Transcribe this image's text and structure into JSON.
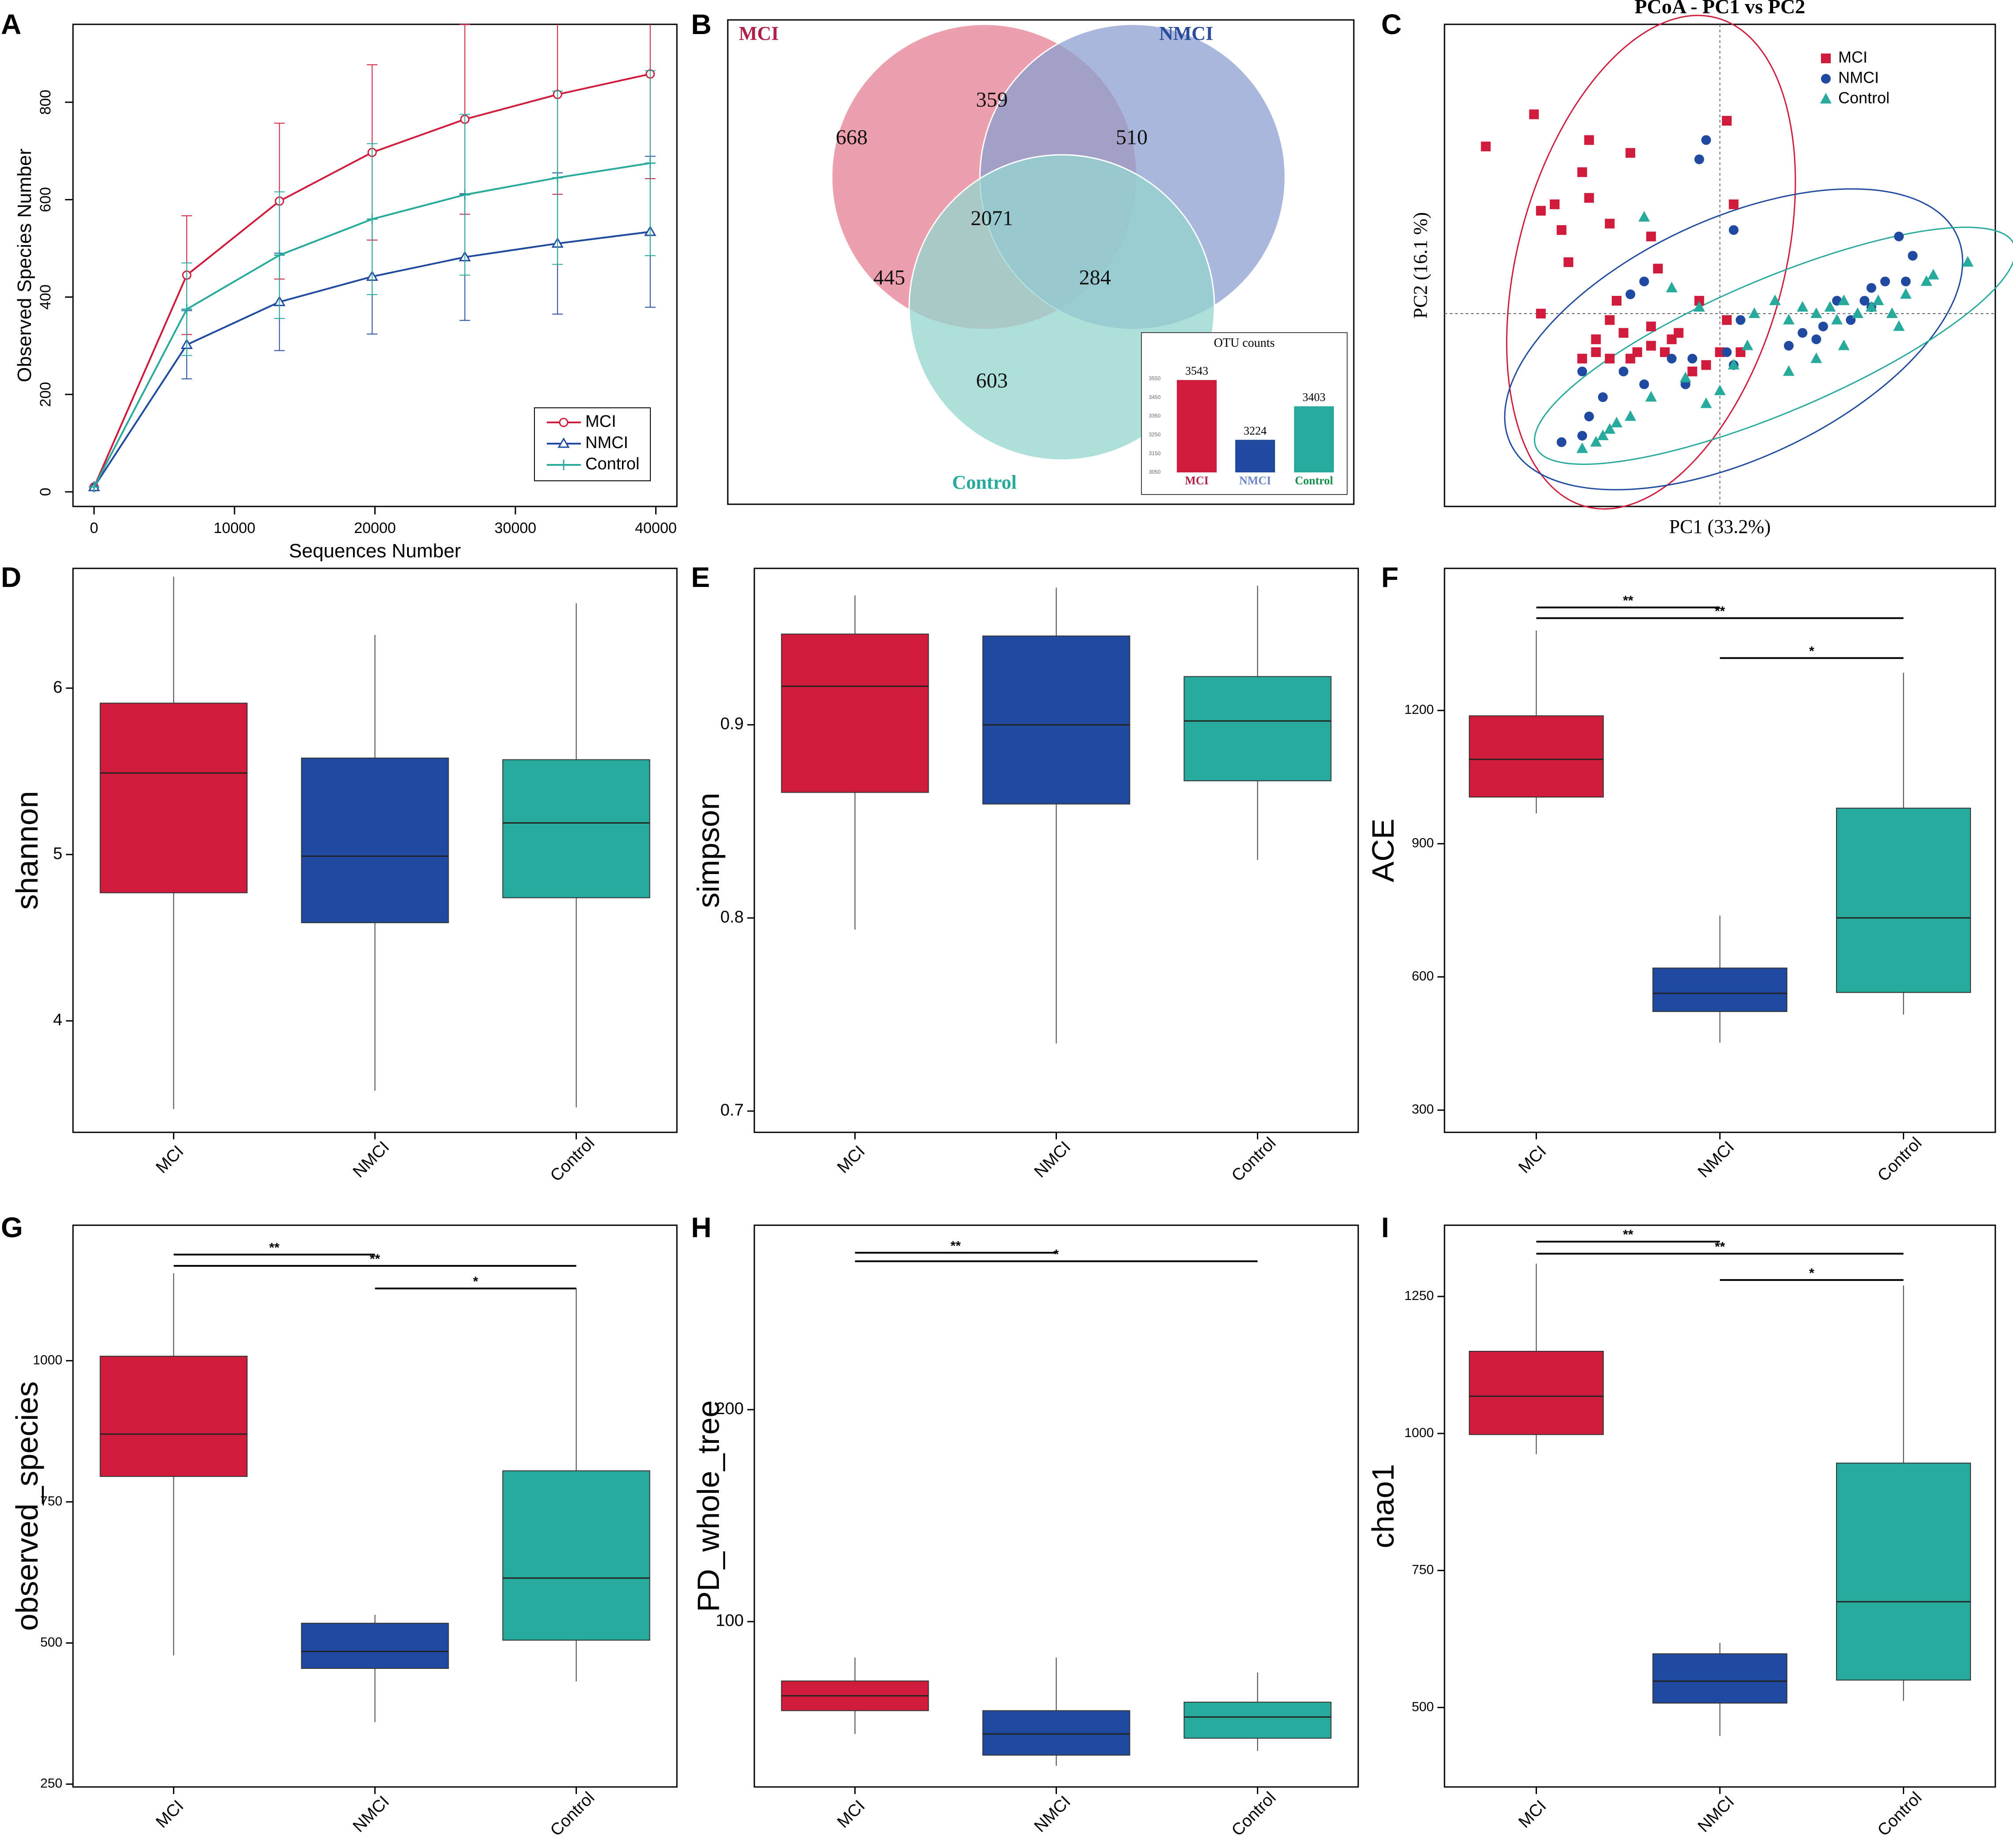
{
  "colors": {
    "mci": "#d01c3c",
    "nmci": "#1f4aa0",
    "control": "#27aa9c",
    "mci_venn": "#e57f90",
    "nmci_venn": "#8c9fd0",
    "control_venn": "#93d6cf"
  },
  "chart_data": [
    {
      "id": "A",
      "panel_label": "A",
      "type": "line",
      "title": "",
      "xlabel": "Sequences Number",
      "ylabel": "Observed Species Number",
      "xlim": [
        -1500,
        41500
      ],
      "ylim": [
        -30,
        960
      ],
      "x_ticks": [
        0,
        10000,
        20000,
        30000,
        40000
      ],
      "x_tick_labels": [
        "0",
        "10000",
        "20000",
        "30000",
        "40000"
      ],
      "y_ticks": [
        0,
        200,
        400,
        600,
        800
      ],
      "y_tick_labels": [
        "0",
        "200",
        "400",
        "600",
        "800"
      ],
      "x": [
        0,
        6600,
        13200,
        19800,
        26400,
        33000,
        39600
      ],
      "series": [
        {
          "name": "MCI",
          "color": "#d01c3c",
          "marker": "circle",
          "values": [
            10,
            445,
            597,
            697,
            765,
            816,
            858
          ],
          "err": [
            0,
            122,
            160,
            180,
            195,
            205,
            215
          ]
        },
        {
          "name": "NMCI",
          "color": "#1f4aa0",
          "marker": "triangle",
          "values": [
            10,
            302,
            390,
            442,
            482,
            510,
            534
          ],
          "err": [
            0,
            70,
            100,
            118,
            130,
            145,
            155
          ]
        },
        {
          "name": "Control",
          "color": "#27aa9c",
          "marker": "plus",
          "values": [
            10,
            375,
            486,
            560,
            610,
            645,
            675
          ],
          "err": [
            0,
            95,
            130,
            155,
            165,
            178,
            190
          ]
        }
      ],
      "legend": [
        "MCI",
        "NMCI",
        "Control"
      ],
      "legend_position": "bottom-right"
    },
    {
      "id": "B",
      "panel_label": "B",
      "type": "venn",
      "sets": [
        "MCI",
        "NMCI",
        "Control"
      ],
      "regions": {
        "mci_only": "668",
        "nmci_only": "510",
        "control_only": "603",
        "mci_nmci": "359",
        "mci_control": "445",
        "nmci_control": "284",
        "all": "2071"
      },
      "inset": {
        "type": "bar",
        "title": "OTU counts",
        "categories": [
          "MCI",
          "NMCI",
          "Control"
        ],
        "values": [
          3543,
          3224,
          3403
        ],
        "value_labels": [
          "3543",
          "3224",
          "3403"
        ],
        "ylim": [
          3050,
          3560
        ],
        "y_ticks": [
          3050,
          3150,
          3250,
          3350,
          3450,
          3550
        ],
        "y_tick_labels": [
          "3050",
          "3150",
          "3250",
          "3350",
          "3450",
          "3550"
        ]
      }
    },
    {
      "id": "C",
      "panel_label": "C",
      "type": "scatter",
      "title": "PCoA - PC1 vs PC2",
      "xlabel": "PC1 (33.2%)",
      "ylabel": "PC2 (16.1 %)",
      "xlim": [
        -0.4,
        0.4
      ],
      "ylim": [
        -0.3,
        0.45
      ],
      "legend": [
        "MCI",
        "NMCI",
        "Control"
      ],
      "legend_position": "top-right",
      "series": [
        {
          "name": "MCI",
          "marker": "square",
          "color": "#d01c3c",
          "points": [
            [
              -0.34,
              0.26
            ],
            [
              -0.27,
              0.31
            ],
            [
              -0.19,
              0.27
            ],
            [
              -0.2,
              0.22
            ],
            [
              -0.13,
              0.25
            ],
            [
              -0.26,
              0.16
            ],
            [
              -0.24,
              0.17
            ],
            [
              -0.19,
              0.18
            ],
            [
              -0.16,
              0.14
            ],
            [
              -0.23,
              0.13
            ],
            [
              -0.1,
              0.12
            ],
            [
              -0.22,
              0.08
            ],
            [
              -0.09,
              0.07
            ],
            [
              0.01,
              0.3
            ],
            [
              0.02,
              0.17
            ],
            [
              -0.15,
              0.02
            ],
            [
              -0.16,
              -0.01
            ],
            [
              -0.18,
              -0.04
            ],
            [
              -0.2,
              -0.07
            ],
            [
              -0.26,
              0.0
            ],
            [
              -0.18,
              -0.06
            ],
            [
              -0.16,
              -0.07
            ],
            [
              -0.13,
              -0.07
            ],
            [
              -0.12,
              -0.06
            ],
            [
              -0.1,
              -0.05
            ],
            [
              -0.08,
              -0.06
            ],
            [
              -0.07,
              -0.04
            ],
            [
              -0.04,
              -0.09
            ],
            [
              -0.02,
              -0.08
            ],
            [
              -0.03,
              0.02
            ],
            [
              0.0,
              -0.06
            ],
            [
              0.01,
              -0.01
            ],
            [
              0.03,
              -0.06
            ],
            [
              -0.1,
              -0.02
            ],
            [
              -0.06,
              -0.03
            ],
            [
              -0.14,
              -0.03
            ]
          ]
        },
        {
          "name": "NMCI",
          "marker": "circle",
          "color": "#1f4aa0",
          "points": [
            [
              -0.02,
              0.27
            ],
            [
              -0.03,
              0.24
            ],
            [
              0.02,
              0.13
            ],
            [
              0.26,
              0.12
            ],
            [
              0.28,
              0.09
            ],
            [
              0.27,
              0.05
            ],
            [
              0.24,
              0.05
            ],
            [
              0.22,
              0.04
            ],
            [
              0.21,
              0.02
            ],
            [
              0.22,
              0.01
            ],
            [
              0.17,
              0.02
            ],
            [
              0.19,
              -0.01
            ],
            [
              0.14,
              -0.04
            ],
            [
              0.1,
              -0.05
            ],
            [
              -0.11,
              0.05
            ],
            [
              -0.13,
              0.03
            ],
            [
              -0.04,
              -0.07
            ],
            [
              -0.2,
              -0.09
            ],
            [
              -0.14,
              -0.09
            ],
            [
              -0.17,
              -0.13
            ],
            [
              -0.19,
              -0.16
            ],
            [
              -0.2,
              -0.19
            ],
            [
              -0.23,
              -0.2
            ],
            [
              -0.11,
              -0.11
            ],
            [
              -0.05,
              -0.11
            ],
            [
              0.01,
              -0.06
            ],
            [
              0.02,
              -0.08
            ],
            [
              -0.07,
              -0.07
            ],
            [
              0.03,
              -0.01
            ],
            [
              0.12,
              -0.03
            ],
            [
              0.15,
              -0.02
            ]
          ]
        },
        {
          "name": "Control",
          "marker": "triangle",
          "color": "#27aa9c",
          "points": [
            [
              -0.11,
              0.15
            ],
            [
              -0.07,
              0.04
            ],
            [
              -0.03,
              0.01
            ],
            [
              0.05,
              0.0
            ],
            [
              0.08,
              0.02
            ],
            [
              0.1,
              -0.01
            ],
            [
              0.12,
              0.01
            ],
            [
              0.14,
              0.0
            ],
            [
              0.16,
              0.01
            ],
            [
              0.17,
              -0.01
            ],
            [
              0.18,
              0.02
            ],
            [
              0.2,
              0.0
            ],
            [
              0.22,
              0.01
            ],
            [
              0.23,
              0.02
            ],
            [
              0.25,
              0.0
            ],
            [
              0.26,
              -0.02
            ],
            [
              0.27,
              0.03
            ],
            [
              0.3,
              0.05
            ],
            [
              0.36,
              0.08
            ],
            [
              0.31,
              0.06
            ],
            [
              0.18,
              -0.05
            ],
            [
              0.14,
              -0.07
            ],
            [
              0.1,
              -0.09
            ],
            [
              0.04,
              -0.05
            ],
            [
              0.02,
              -0.08
            ],
            [
              0.0,
              -0.12
            ],
            [
              -0.02,
              -0.14
            ],
            [
              -0.05,
              -0.1
            ],
            [
              -0.1,
              -0.13
            ],
            [
              -0.13,
              -0.16
            ],
            [
              -0.15,
              -0.17
            ],
            [
              -0.17,
              -0.19
            ],
            [
              -0.2,
              -0.21
            ],
            [
              -0.18,
              -0.2
            ],
            [
              -0.16,
              -0.18
            ]
          ]
        }
      ],
      "ellipses": [
        {
          "name": "MCI",
          "color": "#d01c3c",
          "cx": -0.1,
          "cy": 0.08,
          "rx": 0.38,
          "ry": 0.2,
          "angle": 75
        },
        {
          "name": "NMCI",
          "color": "#1f4aa0",
          "cx": 0.02,
          "cy": -0.04,
          "rx": 0.37,
          "ry": 0.18,
          "angle": 25
        },
        {
          "name": "Control",
          "color": "#27aa9c",
          "cx": 0.08,
          "cy": -0.05,
          "rx": 0.39,
          "ry": 0.1,
          "angle": 23
        }
      ]
    },
    {
      "id": "D",
      "panel_label": "D",
      "type": "box",
      "ylabel": "shannon",
      "categories": [
        "MCI",
        "NMCI",
        "Control"
      ],
      "ylim": [
        3.33,
        6.72
      ],
      "y_ticks": [
        4,
        5,
        6
      ],
      "y_tick_labels": [
        "4",
        "5",
        "6"
      ],
      "boxes": [
        {
          "min": 3.47,
          "q1": 4.77,
          "median": 5.49,
          "q3": 5.91,
          "max": 6.67
        },
        {
          "min": 3.58,
          "q1": 4.59,
          "median": 4.99,
          "q3": 5.58,
          "max": 6.32
        },
        {
          "min": 3.48,
          "q1": 4.74,
          "median": 5.19,
          "q3": 5.57,
          "max": 6.51
        }
      ],
      "sig": []
    },
    {
      "id": "E",
      "panel_label": "E",
      "type": "box",
      "ylabel": "simpson",
      "categories": [
        "MCI",
        "NMCI",
        "Control"
      ],
      "ylim": [
        0.689,
        0.981
      ],
      "y_ticks": [
        0.7,
        0.8,
        0.9
      ],
      "y_tick_labels": [
        "0.7",
        "0.8",
        "0.9"
      ],
      "boxes": [
        {
          "min": 0.794,
          "q1": 0.865,
          "median": 0.92,
          "q3": 0.947,
          "max": 0.967
        },
        {
          "min": 0.735,
          "q1": 0.859,
          "median": 0.9,
          "q3": 0.946,
          "max": 0.971
        },
        {
          "min": 0.83,
          "q1": 0.871,
          "median": 0.902,
          "q3": 0.925,
          "max": 0.972
        }
      ],
      "sig": []
    },
    {
      "id": "F",
      "panel_label": "F",
      "type": "box",
      "ylabel": "ACE",
      "categories": [
        "MCI",
        "NMCI",
        "Control"
      ],
      "ylim": [
        250,
        1520
      ],
      "y_ticks": [
        300,
        600,
        900,
        1200
      ],
      "y_tick_labels": [
        "300",
        "600",
        "900",
        "1200"
      ],
      "boxes": [
        {
          "min": 968,
          "q1": 1005,
          "median": 1090,
          "q3": 1188,
          "max": 1380
        },
        {
          "min": 452,
          "q1": 522,
          "median": 563,
          "q3": 620,
          "max": 738
        },
        {
          "min": 515,
          "q1": 565,
          "median": 733,
          "q3": 980,
          "max": 1285
        }
      ],
      "sig": [
        {
          "from": 0,
          "to": 1,
          "label": "**",
          "y": 1432
        },
        {
          "from": 0,
          "to": 2,
          "label": "**",
          "y": 1408
        },
        {
          "from": 1,
          "to": 2,
          "label": "*",
          "y": 1318
        }
      ]
    },
    {
      "id": "G",
      "panel_label": "G",
      "type": "box",
      "ylabel": "observed_species",
      "categories": [
        "MCI",
        "NMCI",
        "Control"
      ],
      "ylim": [
        245,
        1240
      ],
      "y_ticks": [
        250,
        500,
        750,
        1000
      ],
      "y_tick_labels": [
        "250",
        "500",
        "750",
        "1000"
      ],
      "boxes": [
        {
          "min": 478,
          "q1": 795,
          "median": 870,
          "q3": 1008,
          "max": 1155
        },
        {
          "min": 360,
          "q1": 455,
          "median": 485,
          "q3": 535,
          "max": 550
        },
        {
          "min": 432,
          "q1": 505,
          "median": 615,
          "q3": 805,
          "max": 1128
        }
      ],
      "sig": [
        {
          "from": 0,
          "to": 1,
          "label": "**",
          "y": 1188
        },
        {
          "from": 0,
          "to": 2,
          "label": "**",
          "y": 1168
        },
        {
          "from": 1,
          "to": 2,
          "label": "*",
          "y": 1128
        }
      ]
    },
    {
      "id": "H",
      "panel_label": "H",
      "type": "box",
      "ylabel": "PD_whole_tree",
      "categories": [
        "MCI",
        "NMCI",
        "Control"
      ],
      "ylim": [
        22,
        287
      ],
      "y_ticks": [
        100,
        200
      ],
      "y_tick_labels": [
        "100",
        "200"
      ],
      "boxes": [
        {
          "min": 47,
          "q1": 58,
          "median": 65,
          "q3": 72,
          "max": 83
        },
        {
          "min": 32,
          "q1": 37,
          "median": 47,
          "q3": 58,
          "max": 83
        },
        {
          "min": 39,
          "q1": 45,
          "median": 55,
          "q3": 62,
          "max": 76
        }
      ],
      "sig": [
        {
          "from": 0,
          "to": 1,
          "label": "**",
          "y": 274
        },
        {
          "from": 0,
          "to": 2,
          "label": "*",
          "y": 270
        }
      ]
    },
    {
      "id": "I",
      "panel_label": "I",
      "type": "box",
      "ylabel": "chao1",
      "categories": [
        "MCI",
        "NMCI",
        "Control"
      ],
      "ylim": [
        355,
        1380
      ],
      "y_ticks": [
        500,
        750,
        1000,
        1250
      ],
      "y_tick_labels": [
        "500",
        "750",
        "1000",
        "1250"
      ],
      "boxes": [
        {
          "min": 962,
          "q1": 998,
          "median": 1068,
          "q3": 1150,
          "max": 1310
        },
        {
          "min": 448,
          "q1": 508,
          "median": 548,
          "q3": 598,
          "max": 618
        },
        {
          "min": 512,
          "q1": 550,
          "median": 693,
          "q3": 946,
          "max": 1270
        }
      ],
      "sig": [
        {
          "from": 0,
          "to": 1,
          "label": "**",
          "y": 1350
        },
        {
          "from": 0,
          "to": 2,
          "label": "**",
          "y": 1328
        },
        {
          "from": 1,
          "to": 2,
          "label": "*",
          "y": 1280
        }
      ]
    }
  ]
}
